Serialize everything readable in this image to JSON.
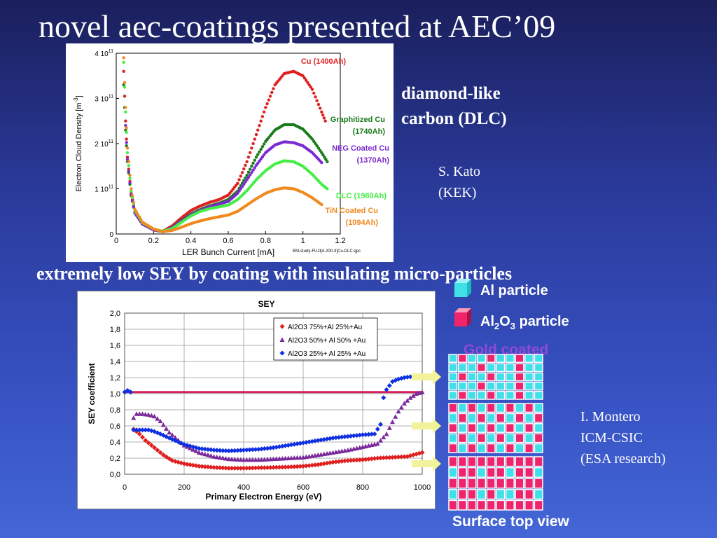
{
  "slide": {
    "title": "novel aec-coatings presented at AEC’09",
    "subtitle": "extremely low SEY by coating with insulating micro-particles",
    "dlc_label_line1": "diamond-like",
    "dlc_label_line2": "carbon (DLC)",
    "credit1_line1": "S. Kato",
    "credit1_line2": "(KEK)",
    "credit2_line1": "I. Montero",
    "credit2_line2": "ICM-CSIC",
    "credit2_line3": "(ESA research)",
    "particle_legend": {
      "al_label": "Al particle",
      "al2o3_label_prefix": "Al",
      "al2o3_sub1": "2",
      "al2o3_mid": "O",
      "al2o3_sub2": "3",
      "al2o3_suffix": " particle",
      "gold": "Gold coated"
    },
    "surface_caption": "Surface top view",
    "colors": {
      "cyan": "#40e0e8",
      "magenta": "#f0246a",
      "arrow": "#f2f29a",
      "gold_text": "#8f4ad8"
    }
  },
  "chart_data": [
    {
      "type": "scatter",
      "xlabel": "LER Bunch Current [mA]",
      "ylabel": "Electron Cloud Density [m-3]",
      "ylabel_parts": [
        "Electron Cloud Density [m",
        "-3",
        "]"
      ],
      "xlim": [
        0,
        1.2
      ],
      "ylim": [
        0,
        400000000000.0
      ],
      "x_ticks": [
        "0",
        "0.2",
        "0.4",
        "0.6",
        "0.8",
        "1",
        "1.2"
      ],
      "y_ticks": [
        {
          "base": "0",
          "exp": ""
        },
        {
          "base": "1 10",
          "exp": "11"
        },
        {
          "base": "2 10",
          "exp": "11"
        },
        {
          "base": "3 10",
          "exp": "11"
        },
        {
          "base": "4 10",
          "exp": "11"
        }
      ],
      "footnote": "EM-study-FUJI[4-200-3]Cu-DLC.qpc",
      "series": [
        {
          "name": "Cu (1400Ah)",
          "label_lines": [
            "Cu (1400Ah)"
          ],
          "color": "#e02020",
          "points": [
            [
              0.04,
              360000000000.0
            ],
            [
              0.05,
              250000000000.0
            ],
            [
              0.06,
              170000000000.0
            ],
            [
              0.08,
              90000000000.0
            ],
            [
              0.1,
              50000000000.0
            ],
            [
              0.14,
              24000000000.0
            ],
            [
              0.2,
              10000000000.0
            ],
            [
              0.25,
              6000000000.0
            ],
            [
              0.3,
              18000000000.0
            ],
            [
              0.35,
              36000000000.0
            ],
            [
              0.4,
              52000000000.0
            ],
            [
              0.45,
              62000000000.0
            ],
            [
              0.5,
              70000000000.0
            ],
            [
              0.55,
              76000000000.0
            ],
            [
              0.6,
              86000000000.0
            ],
            [
              0.65,
              112000000000.0
            ],
            [
              0.7,
              160000000000.0
            ],
            [
              0.75,
              220000000000.0
            ],
            [
              0.8,
              280000000000.0
            ],
            [
              0.85,
              330000000000.0
            ],
            [
              0.9,
              355000000000.0
            ],
            [
              0.95,
              360000000000.0
            ],
            [
              1.0,
              350000000000.0
            ],
            [
              1.05,
              320000000000.0
            ],
            [
              1.1,
              270000000000.0
            ],
            [
              1.12,
              250000000000.0
            ]
          ]
        },
        {
          "name": "Graphitized Cu (1740Ah)",
          "label_lines": [
            "Graphitized Cu",
            "(1740Ah)"
          ],
          "color": "#1a7a1a",
          "points": [
            [
              0.04,
              330000000000.0
            ],
            [
              0.05,
              230000000000.0
            ],
            [
              0.06,
              160000000000.0
            ],
            [
              0.08,
              85000000000.0
            ],
            [
              0.1,
              46000000000.0
            ],
            [
              0.14,
              22000000000.0
            ],
            [
              0.2,
              9000000000.0
            ],
            [
              0.25,
              5000000000.0
            ],
            [
              0.3,
              14000000000.0
            ],
            [
              0.35,
              30000000000.0
            ],
            [
              0.4,
              44000000000.0
            ],
            [
              0.45,
              54000000000.0
            ],
            [
              0.5,
              62000000000.0
            ],
            [
              0.55,
              68000000000.0
            ],
            [
              0.6,
              76000000000.0
            ],
            [
              0.65,
              95000000000.0
            ],
            [
              0.7,
              130000000000.0
            ],
            [
              0.75,
              170000000000.0
            ],
            [
              0.8,
              205000000000.0
            ],
            [
              0.85,
              230000000000.0
            ],
            [
              0.9,
              242000000000.0
            ],
            [
              0.95,
              242000000000.0
            ],
            [
              1.0,
              232000000000.0
            ],
            [
              1.05,
              210000000000.0
            ],
            [
              1.1,
              180000000000.0
            ],
            [
              1.13,
              160000000000.0
            ]
          ]
        },
        {
          "name": "NEG Coated Cu (1370Ah)",
          "label_lines": [
            "NEG Coated Cu",
            "(1370Ah)"
          ],
          "color": "#7a2ad0",
          "points": [
            [
              0.05,
              240000000000.0
            ],
            [
              0.06,
              165000000000.0
            ],
            [
              0.08,
              87000000000.0
            ],
            [
              0.1,
              47000000000.0
            ],
            [
              0.14,
              22000000000.0
            ],
            [
              0.2,
              9000000000.0
            ],
            [
              0.25,
              5000000000.0
            ],
            [
              0.3,
              14000000000.0
            ],
            [
              0.35,
              29000000000.0
            ],
            [
              0.4,
              42000000000.0
            ],
            [
              0.45,
              52000000000.0
            ],
            [
              0.5,
              60000000000.0
            ],
            [
              0.55,
              66000000000.0
            ],
            [
              0.6,
              72000000000.0
            ],
            [
              0.65,
              90000000000.0
            ],
            [
              0.7,
              120000000000.0
            ],
            [
              0.75,
              152000000000.0
            ],
            [
              0.8,
              180000000000.0
            ],
            [
              0.85,
              197000000000.0
            ],
            [
              0.9,
              204000000000.0
            ],
            [
              0.95,
              202000000000.0
            ],
            [
              1.0,
              195000000000.0
            ],
            [
              1.05,
              180000000000.0
            ],
            [
              1.1,
              158000000000.0
            ]
          ]
        },
        {
          "name": "DLC (1980Ah)",
          "label_lines": [
            "DLC (1980Ah)"
          ],
          "color": "#44ee44",
          "points": [
            [
              0.04,
              380000000000.0
            ],
            [
              0.05,
              270000000000.0
            ],
            [
              0.06,
              180000000000.0
            ],
            [
              0.08,
              95000000000.0
            ],
            [
              0.1,
              52000000000.0
            ],
            [
              0.14,
              25000000000.0
            ],
            [
              0.2,
              11000000000.0
            ],
            [
              0.25,
              6000000000.0
            ],
            [
              0.3,
              12000000000.0
            ],
            [
              0.35,
              26000000000.0
            ],
            [
              0.4,
              40000000000.0
            ],
            [
              0.45,
              50000000000.0
            ],
            [
              0.5,
              56000000000.0
            ],
            [
              0.55,
              60000000000.0
            ],
            [
              0.6,
              64000000000.0
            ],
            [
              0.65,
              76000000000.0
            ],
            [
              0.7,
              96000000000.0
            ],
            [
              0.75,
              120000000000.0
            ],
            [
              0.8,
              140000000000.0
            ],
            [
              0.85,
              155000000000.0
            ],
            [
              0.9,
              162000000000.0
            ],
            [
              0.95,
              160000000000.0
            ],
            [
              1.0,
              150000000000.0
            ],
            [
              1.05,
              132000000000.0
            ],
            [
              1.1,
              110000000000.0
            ],
            [
              1.13,
              100000000000.0
            ]
          ]
        },
        {
          "name": "TiN Coated Cu (1094Ah)",
          "label_lines": [
            "TiN Coated Cu",
            "(1094Ah)"
          ],
          "color": "#f08a20",
          "points": [
            [
              0.04,
              390000000000.0
            ],
            [
              0.05,
              280000000000.0
            ],
            [
              0.06,
              190000000000.0
            ],
            [
              0.08,
              100000000000.0
            ],
            [
              0.1,
              55000000000.0
            ],
            [
              0.14,
              26000000000.0
            ],
            [
              0.2,
              11000000000.0
            ],
            [
              0.25,
              5000000000.0
            ],
            [
              0.3,
              8000000000.0
            ],
            [
              0.35,
              15000000000.0
            ],
            [
              0.4,
              23000000000.0
            ],
            [
              0.45,
              29000000000.0
            ],
            [
              0.5,
              34000000000.0
            ],
            [
              0.55,
              38000000000.0
            ],
            [
              0.6,
              42000000000.0
            ],
            [
              0.65,
              50000000000.0
            ],
            [
              0.7,
              64000000000.0
            ],
            [
              0.75,
              78000000000.0
            ],
            [
              0.8,
              90000000000.0
            ],
            [
              0.85,
              98000000000.0
            ],
            [
              0.9,
              102000000000.0
            ],
            [
              0.95,
              100000000000.0
            ],
            [
              1.0,
              92000000000.0
            ],
            [
              1.05,
              80000000000.0
            ],
            [
              1.1,
              65000000000.0
            ]
          ]
        }
      ]
    },
    {
      "type": "scatter",
      "title": "SEY",
      "xlabel": "Primary Electron Energy (eV)",
      "ylabel": "SEY coefficient",
      "xlim": [
        0,
        1000
      ],
      "ylim": [
        0,
        2.0
      ],
      "x_ticks": [
        "0",
        "200",
        "400",
        "600",
        "800",
        "1000"
      ],
      "y_ticks": [
        "0,0",
        "0,2",
        "0,4",
        "0,6",
        "0,8",
        "1,0",
        "1,2",
        "1,4",
        "1,6",
        "1,8",
        "2,0"
      ],
      "reference_line": {
        "y": 1.02,
        "color": "#d0205a"
      },
      "series": [
        {
          "name": "Al2O3 75%+Al 25%+Au",
          "color": "#e02020",
          "marker": "diamond",
          "points": [
            [
              30,
              0.56
            ],
            [
              50,
              0.5
            ],
            [
              70,
              0.42
            ],
            [
              100,
              0.33
            ],
            [
              130,
              0.24
            ],
            [
              160,
              0.17
            ],
            [
              200,
              0.13
            ],
            [
              250,
              0.1
            ],
            [
              300,
              0.085
            ],
            [
              350,
              0.075
            ],
            [
              400,
              0.075
            ],
            [
              450,
              0.08
            ],
            [
              500,
              0.085
            ],
            [
              550,
              0.09
            ],
            [
              600,
              0.1
            ],
            [
              650,
              0.12
            ],
            [
              700,
              0.15
            ],
            [
              750,
              0.17
            ],
            [
              800,
              0.18
            ],
            [
              850,
              0.2
            ],
            [
              900,
              0.21
            ],
            [
              950,
              0.22
            ],
            [
              1000,
              0.27
            ]
          ]
        },
        {
          "name": "Al2O3 50%+ Al 50% +Au",
          "color": "#7a2a9a",
          "marker": "triangle",
          "points": [
            [
              30,
              0.7
            ],
            [
              40,
              0.75
            ],
            [
              60,
              0.75
            ],
            [
              80,
              0.74
            ],
            [
              100,
              0.72
            ],
            [
              120,
              0.66
            ],
            [
              150,
              0.52
            ],
            [
              200,
              0.36
            ],
            [
              250,
              0.27
            ],
            [
              300,
              0.22
            ],
            [
              350,
              0.19
            ],
            [
              400,
              0.18
            ],
            [
              450,
              0.18
            ],
            [
              500,
              0.19
            ],
            [
              550,
              0.2
            ],
            [
              600,
              0.21
            ],
            [
              650,
              0.24
            ],
            [
              700,
              0.27
            ],
            [
              750,
              0.3
            ],
            [
              800,
              0.34
            ],
            [
              850,
              0.38
            ],
            [
              880,
              0.5
            ],
            [
              900,
              0.65
            ],
            [
              920,
              0.78
            ],
            [
              940,
              0.88
            ],
            [
              960,
              0.95
            ],
            [
              980,
              1.0
            ],
            [
              1000,
              1.02
            ]
          ]
        },
        {
          "name": "Al2O3 25%+ Al 25% +Au",
          "color": "#1030e0",
          "marker": "diamond",
          "points": [
            [
              0,
              1.02
            ],
            [
              10,
              1.04
            ],
            [
              20,
              1.02
            ],
            [
              30,
              0.55
            ],
            [
              50,
              0.55
            ],
            [
              80,
              0.55
            ],
            [
              100,
              0.53
            ],
            [
              120,
              0.5
            ],
            [
              150,
              0.45
            ],
            [
              200,
              0.37
            ],
            [
              250,
              0.32
            ],
            [
              300,
              0.3
            ],
            [
              350,
              0.29
            ],
            [
              400,
              0.3
            ],
            [
              450,
              0.31
            ],
            [
              500,
              0.33
            ],
            [
              550,
              0.36
            ],
            [
              600,
              0.39
            ],
            [
              650,
              0.42
            ],
            [
              700,
              0.45
            ],
            [
              750,
              0.47
            ],
            [
              800,
              0.49
            ],
            [
              840,
              0.5
            ],
            [
              860,
              0.62
            ],
            [
              870,
              0.95
            ],
            [
              880,
              1.05
            ],
            [
              900,
              1.15
            ],
            [
              920,
              1.18
            ],
            [
              940,
              1.2
            ],
            [
              960,
              1.21
            ]
          ]
        }
      ]
    }
  ]
}
